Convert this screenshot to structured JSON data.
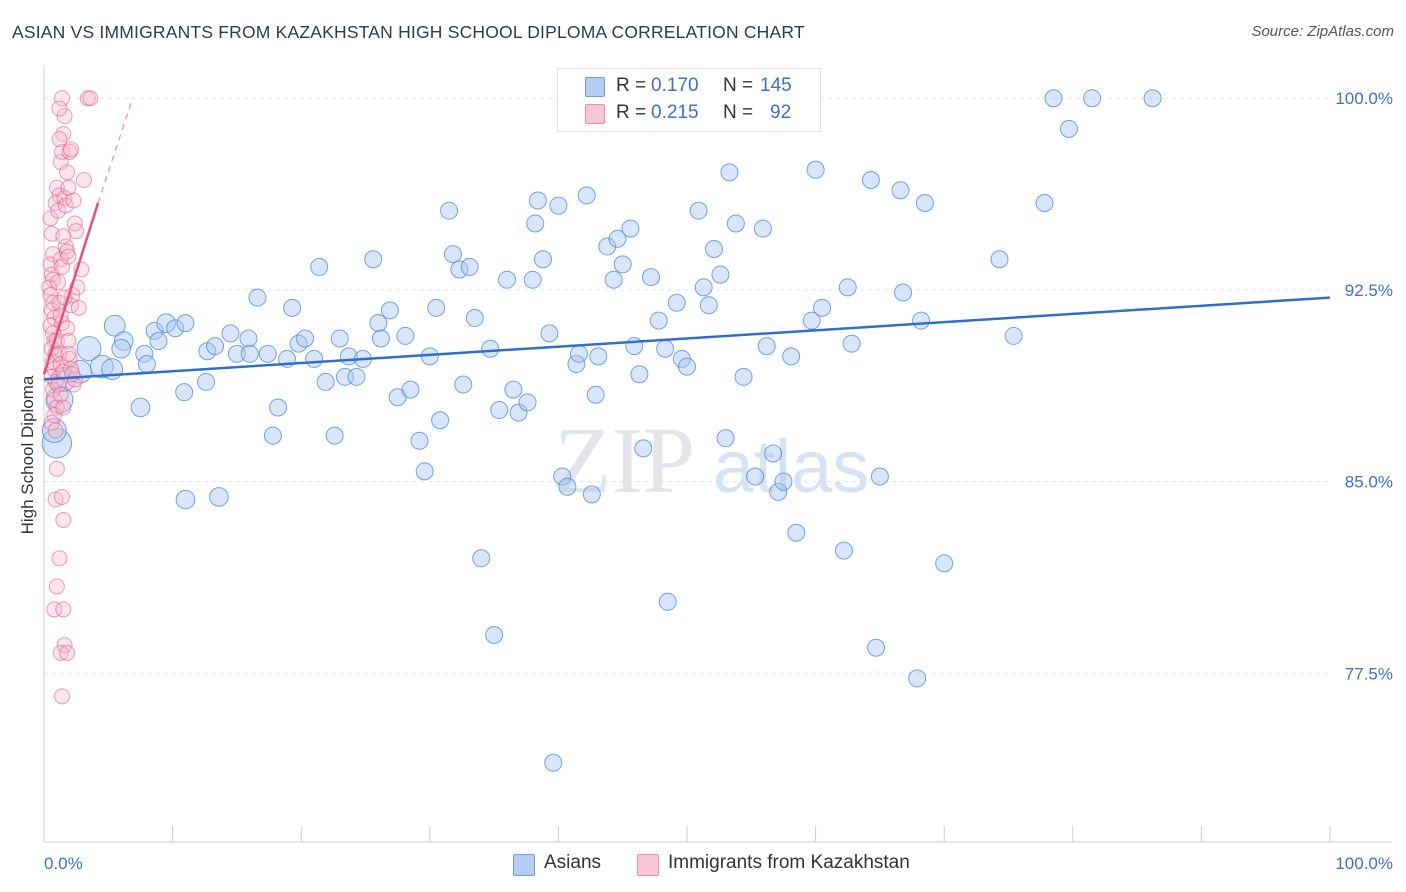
{
  "title": "ASIAN VS IMMIGRANTS FROM KAZAKHSTAN HIGH SCHOOL DIPLOMA CORRELATION CHART",
  "source": "Source: ZipAtlas.com",
  "watermark": {
    "zip": "ZIP",
    "atlas": "atlas"
  },
  "legend": {
    "rows": [
      {
        "r_label": "R =",
        "r_value": "0.170",
        "n_label": "N =",
        "n_value": "145",
        "color": "#a8c4ee"
      },
      {
        "r_label": "R =",
        "r_value": "0.215",
        "n_label": "N =",
        "n_value": "92",
        "color": "#f7b8cc"
      }
    ]
  },
  "bottom_legend": [
    {
      "label": "Asians",
      "color": "#a8c4ee"
    },
    {
      "label": "Immigrants from Kazakhstan",
      "color": "#f7b8cc"
    }
  ],
  "chart_data": {
    "type": "scatter",
    "title": "ASIAN VS IMMIGRANTS FROM KAZAKHSTAN HIGH SCHOOL DIPLOMA CORRELATION CHART",
    "xlabel": "",
    "ylabel": "High School Diploma",
    "xlim": [
      0,
      100
    ],
    "ylim": [
      70.9,
      101.3
    ],
    "x_tick_labels": [
      "0.0%",
      "100.0%"
    ],
    "y_ticks": [
      77.5,
      85.0,
      92.5,
      100.0
    ],
    "y_tick_labels": [
      "77.5%",
      "85.0%",
      "92.5%",
      "100.0%"
    ],
    "grid": true,
    "series": [
      {
        "name": "Asians",
        "color": "#4a86d8",
        "fill": "#aac6f0",
        "trend": {
          "x": [
            0,
            100
          ],
          "y": [
            89.0,
            92.2
          ]
        },
        "points": [
          [
            1.0,
            86.5,
            3
          ],
          [
            0.8,
            87.0,
            2
          ],
          [
            1.2,
            88.2,
            2.5
          ],
          [
            1.5,
            89.0,
            2
          ],
          [
            3.5,
            90.2,
            2
          ],
          [
            4.5,
            89.5,
            1.8
          ],
          [
            2.8,
            89.3,
            1.8
          ],
          [
            5.3,
            89.4,
            1.5
          ],
          [
            5.5,
            91.1,
            1.5
          ],
          [
            6.2,
            90.5,
            1.2
          ],
          [
            6.0,
            90.2,
            1.2
          ],
          [
            7.5,
            87.9,
            1.2
          ],
          [
            7.8,
            90.0,
            1
          ],
          [
            8.0,
            89.6,
            1
          ],
          [
            8.6,
            90.9,
            1
          ],
          [
            8.9,
            90.5,
            1
          ],
          [
            9.5,
            91.2,
            1.2
          ],
          [
            10.2,
            91.0,
            1
          ],
          [
            11.0,
            91.2,
            1
          ],
          [
            11.0,
            84.3,
            1.2
          ],
          [
            10.9,
            88.5,
            1
          ],
          [
            12.7,
            90.1,
            1
          ],
          [
            12.6,
            88.9,
            1
          ],
          [
            13.3,
            90.3,
            1
          ],
          [
            13.6,
            84.4,
            1.2
          ],
          [
            14.5,
            90.8,
            1
          ],
          [
            15.0,
            90.0,
            1
          ],
          [
            15.9,
            90.6,
            1
          ],
          [
            16.0,
            90.0,
            1
          ],
          [
            16.6,
            92.2,
            1
          ],
          [
            17.4,
            90.0,
            1
          ],
          [
            17.8,
            86.8,
            1
          ],
          [
            18.2,
            87.9,
            1
          ],
          [
            18.9,
            89.8,
            1
          ],
          [
            19.3,
            91.8,
            1
          ],
          [
            19.8,
            90.4,
            1
          ],
          [
            20.3,
            90.6,
            1
          ],
          [
            21.0,
            89.8,
            1
          ],
          [
            21.4,
            93.4,
            1
          ],
          [
            21.9,
            88.9,
            1
          ],
          [
            22.6,
            86.8,
            1
          ],
          [
            23.0,
            90.6,
            1
          ],
          [
            23.4,
            89.1,
            1
          ],
          [
            23.7,
            89.9,
            1
          ],
          [
            24.3,
            89.1,
            1
          ],
          [
            24.8,
            89.8,
            1
          ],
          [
            25.6,
            93.7,
            1
          ],
          [
            26.0,
            91.2,
            1
          ],
          [
            26.2,
            90.6,
            1
          ],
          [
            26.9,
            91.7,
            1
          ],
          [
            27.5,
            88.3,
            1
          ],
          [
            28.1,
            90.7,
            1
          ],
          [
            28.5,
            88.6,
            1
          ],
          [
            29.2,
            86.6,
            1
          ],
          [
            29.6,
            85.4,
            1
          ],
          [
            30.0,
            89.9,
            1
          ],
          [
            30.5,
            91.8,
            1
          ],
          [
            30.8,
            87.4,
            1
          ],
          [
            31.5,
            95.6,
            1
          ],
          [
            31.8,
            93.9,
            1
          ],
          [
            32.3,
            93.3,
            1
          ],
          [
            32.6,
            88.8,
            1
          ],
          [
            33.1,
            93.4,
            1
          ],
          [
            33.5,
            91.4,
            1
          ],
          [
            34.0,
            82.0,
            1
          ],
          [
            34.7,
            90.2,
            1
          ],
          [
            35.0,
            79.0,
            1
          ],
          [
            35.4,
            87.8,
            1
          ],
          [
            36.0,
            92.9,
            1
          ],
          [
            36.5,
            88.6,
            1
          ],
          [
            36.9,
            87.7,
            1
          ],
          [
            37.6,
            88.1,
            1
          ],
          [
            38.0,
            92.9,
            1
          ],
          [
            38.4,
            96.0,
            1
          ],
          [
            38.2,
            95.1,
            1
          ],
          [
            38.8,
            93.7,
            1
          ],
          [
            39.3,
            90.8,
            1
          ],
          [
            39.6,
            74.0,
            1
          ],
          [
            40.0,
            95.8,
            1
          ],
          [
            40.3,
            85.2,
            1
          ],
          [
            40.7,
            84.8,
            1
          ],
          [
            41.4,
            89.6,
            1
          ],
          [
            41.6,
            90.0,
            1
          ],
          [
            42.2,
            96.2,
            1
          ],
          [
            42.6,
            84.5,
            1
          ],
          [
            42.9,
            88.4,
            1
          ],
          [
            43.1,
            89.9,
            1
          ],
          [
            43.8,
            94.2,
            1
          ],
          [
            44.3,
            92.9,
            1
          ],
          [
            44.6,
            94.5,
            1
          ],
          [
            45.0,
            93.5,
            1
          ],
          [
            45.6,
            94.9,
            1
          ],
          [
            45.9,
            90.3,
            1
          ],
          [
            46.3,
            89.2,
            1
          ],
          [
            46.6,
            86.3,
            1
          ],
          [
            47.2,
            93.0,
            1
          ],
          [
            47.8,
            91.3,
            1
          ],
          [
            48.3,
            90.2,
            1
          ],
          [
            48.5,
            80.3,
            1
          ],
          [
            49.2,
            92.0,
            1
          ],
          [
            49.6,
            89.8,
            1
          ],
          [
            50.0,
            89.5,
            1
          ],
          [
            50.9,
            95.6,
            1
          ],
          [
            51.3,
            92.6,
            1
          ],
          [
            51.7,
            91.9,
            1
          ],
          [
            52.1,
            94.1,
            1
          ],
          [
            52.6,
            93.1,
            1
          ],
          [
            53.0,
            86.7,
            1
          ],
          [
            53.3,
            97.1,
            1
          ],
          [
            53.8,
            95.1,
            1
          ],
          [
            54.4,
            89.1,
            1
          ],
          [
            55.3,
            85.2,
            1
          ],
          [
            55.9,
            94.9,
            1
          ],
          [
            56.2,
            90.3,
            1
          ],
          [
            56.7,
            86.1,
            1
          ],
          [
            57.1,
            84.6,
            1
          ],
          [
            57.5,
            85.0,
            1
          ],
          [
            58.1,
            89.9,
            1
          ],
          [
            58.5,
            83.0,
            1
          ],
          [
            59.7,
            91.3,
            1
          ],
          [
            60.0,
            97.2,
            1
          ],
          [
            60.5,
            91.8,
            1
          ],
          [
            62.2,
            82.3,
            1
          ],
          [
            62.5,
            92.6,
            1
          ],
          [
            62.8,
            90.4,
            1
          ],
          [
            64.3,
            96.8,
            1
          ],
          [
            64.7,
            78.5,
            1
          ],
          [
            65.0,
            85.2,
            1
          ],
          [
            66.6,
            96.4,
            1
          ],
          [
            66.8,
            92.4,
            1
          ],
          [
            67.9,
            77.3,
            1
          ],
          [
            68.2,
            91.3,
            1
          ],
          [
            68.5,
            95.9,
            1
          ],
          [
            70.0,
            81.8,
            1
          ],
          [
            74.3,
            93.7,
            1
          ],
          [
            75.4,
            90.7,
            1
          ],
          [
            77.8,
            95.9,
            1
          ],
          [
            78.5,
            100.0,
            1
          ],
          [
            79.7,
            98.8,
            1
          ],
          [
            81.5,
            100.0,
            1
          ],
          [
            86.2,
            100.0,
            1
          ]
        ]
      },
      {
        "name": "Immigrants from Kazakhstan",
        "color": "#e0507e",
        "fill": "#f7b8cc",
        "trend": {
          "x": [
            0,
            4.2
          ],
          "y": [
            89.2,
            95.9
          ]
        },
        "trend_dashed": {
          "x": [
            4.2,
            6.9
          ],
          "y": [
            95.9,
            100.0
          ]
        },
        "points": [
          [
            0.5,
            95.3
          ],
          [
            0.6,
            94.7
          ],
          [
            0.7,
            93.9
          ],
          [
            0.5,
            93.5
          ],
          [
            0.6,
            93.1
          ],
          [
            0.7,
            92.9
          ],
          [
            0.4,
            92.6
          ],
          [
            0.5,
            92.3
          ],
          [
            0.7,
            92.0
          ],
          [
            0.6,
            91.7
          ],
          [
            0.8,
            91.4
          ],
          [
            0.5,
            91.1
          ],
          [
            0.7,
            90.8
          ],
          [
            0.8,
            90.5
          ],
          [
            0.6,
            90.2
          ],
          [
            0.9,
            90.0
          ],
          [
            0.7,
            89.7
          ],
          [
            0.8,
            89.4
          ],
          [
            0.6,
            89.1
          ],
          [
            0.9,
            88.9
          ],
          [
            0.7,
            88.6
          ],
          [
            0.8,
            88.2
          ],
          [
            1.0,
            87.9
          ],
          [
            0.8,
            87.6
          ],
          [
            0.6,
            87.3
          ],
          [
            0.9,
            87.0
          ],
          [
            1.0,
            96.5
          ],
          [
            1.2,
            96.2
          ],
          [
            0.9,
            95.9
          ],
          [
            1.1,
            95.6
          ],
          [
            1.3,
            97.5
          ],
          [
            1.4,
            97.9
          ],
          [
            1.5,
            98.6
          ],
          [
            1.6,
            99.3
          ],
          [
            1.2,
            98.4
          ],
          [
            1.3,
            93.7
          ],
          [
            1.4,
            93.4
          ],
          [
            1.1,
            92.8
          ],
          [
            1.2,
            92.0
          ],
          [
            1.3,
            91.5
          ],
          [
            1.4,
            91.2
          ],
          [
            1.0,
            90.5
          ],
          [
            1.2,
            90.0
          ],
          [
            1.3,
            89.6
          ],
          [
            1.5,
            89.3
          ],
          [
            1.1,
            88.8
          ],
          [
            1.3,
            88.4
          ],
          [
            1.5,
            87.9
          ],
          [
            1.0,
            85.5
          ],
          [
            0.9,
            84.3
          ],
          [
            1.4,
            84.4
          ],
          [
            1.5,
            83.5
          ],
          [
            1.2,
            82.0
          ],
          [
            1.0,
            80.9
          ],
          [
            0.8,
            80.0
          ],
          [
            1.5,
            80.0
          ],
          [
            1.6,
            78.6
          ],
          [
            1.3,
            78.3
          ],
          [
            1.8,
            78.3
          ],
          [
            1.4,
            76.6
          ],
          [
            1.7,
            94.2
          ],
          [
            1.8,
            94.0
          ],
          [
            1.9,
            93.8
          ],
          [
            1.6,
            96.1
          ],
          [
            1.7,
            95.8
          ],
          [
            1.9,
            96.5
          ],
          [
            2.0,
            97.9
          ],
          [
            2.1,
            98.0
          ],
          [
            1.8,
            97.1
          ],
          [
            2.3,
            96.0
          ],
          [
            2.4,
            95.1
          ],
          [
            2.5,
            94.8
          ],
          [
            2.2,
            92.3
          ],
          [
            2.1,
            91.9
          ],
          [
            1.8,
            91.0
          ],
          [
            1.9,
            90.5
          ],
          [
            2.0,
            89.8
          ],
          [
            2.1,
            89.4
          ],
          [
            2.3,
            88.8
          ],
          [
            2.6,
            92.6
          ],
          [
            2.7,
            91.8
          ],
          [
            2.9,
            93.3
          ],
          [
            3.1,
            96.8
          ],
          [
            1.4,
            100.0
          ],
          [
            3.4,
            100.0
          ],
          [
            3.6,
            100.0
          ],
          [
            1.2,
            99.6
          ],
          [
            1.5,
            94.6
          ],
          [
            1.6,
            92.2
          ],
          [
            1.9,
            90.0
          ],
          [
            2.4,
            89.0
          ],
          [
            2.2,
            89.2
          ]
        ]
      }
    ]
  }
}
